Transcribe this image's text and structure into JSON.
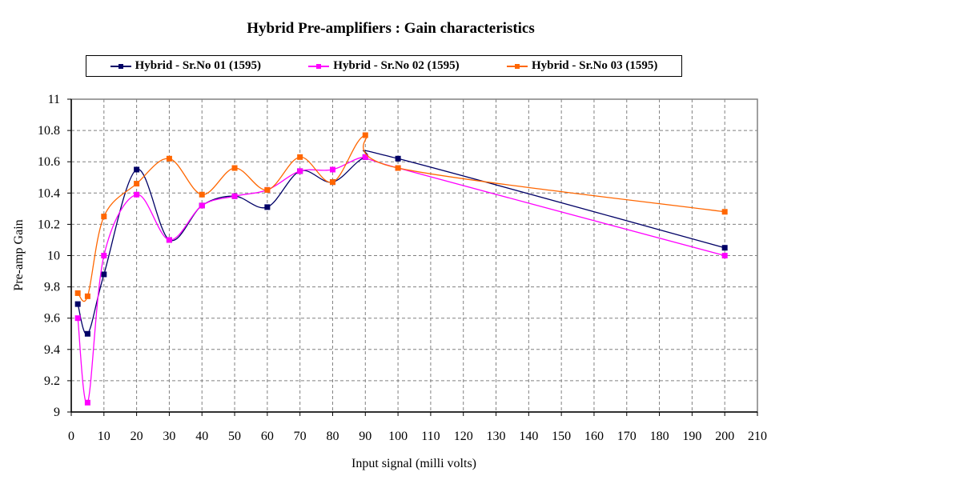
{
  "chart_data": {
    "type": "line",
    "title": "Hybrid Pre-amplifiers : Gain characteristics",
    "xlabel": "Input signal (milli volts)",
    "ylabel": "Pre-amp Gain",
    "xlim": [
      0,
      210
    ],
    "ylim": [
      9,
      11
    ],
    "x_ticks": [
      0,
      10,
      20,
      30,
      40,
      50,
      60,
      70,
      80,
      90,
      100,
      110,
      120,
      130,
      140,
      150,
      160,
      170,
      180,
      190,
      200,
      210
    ],
    "y_ticks": [
      9,
      9.2,
      9.4,
      9.6,
      9.8,
      10,
      10.2,
      10.4,
      10.6,
      10.8,
      11
    ],
    "grid": true,
    "legend_position": "top",
    "smooth": true,
    "series": [
      {
        "name": "Hybrid - Sr.No 01 (1595)",
        "color": "#000066",
        "x": [
          2,
          5,
          10,
          20,
          30,
          40,
          50,
          60,
          70,
          80,
          90,
          100,
          200
        ],
        "values": [
          9.69,
          9.5,
          9.88,
          10.55,
          10.1,
          10.32,
          10.38,
          10.31,
          10.54,
          10.47,
          10.63,
          10.62,
          10.05
        ]
      },
      {
        "name": "Hybrid - Sr.No 02 (1595)",
        "color": "#ff00ff",
        "x": [
          2,
          5,
          10,
          20,
          30,
          40,
          50,
          60,
          70,
          80,
          90,
          100,
          200
        ],
        "values": [
          9.6,
          9.06,
          10.0,
          10.39,
          10.1,
          10.32,
          10.38,
          10.42,
          10.54,
          10.55,
          10.63,
          10.56,
          10.0
        ]
      },
      {
        "name": "Hybrid - Sr.No 03 (1595)",
        "color": "#ff6600",
        "x": [
          2,
          5,
          10,
          20,
          30,
          40,
          50,
          60,
          70,
          80,
          90,
          100,
          200
        ],
        "values": [
          9.76,
          9.74,
          10.25,
          10.46,
          10.62,
          10.39,
          10.56,
          10.42,
          10.63,
          10.47,
          10.77,
          10.56,
          10.28
        ]
      }
    ]
  }
}
